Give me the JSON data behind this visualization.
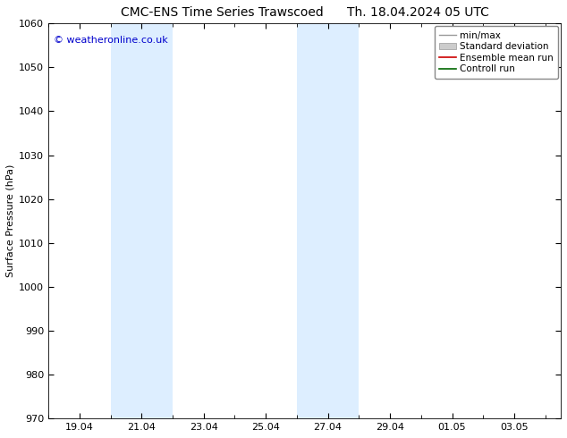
{
  "title_left": "CMC-ENS Time Series Trawscoed",
  "title_right": "Th. 18.04.2024 05 UTC",
  "ylabel": "Surface Pressure (hPa)",
  "ylim": [
    970,
    1060
  ],
  "yticks": [
    970,
    980,
    990,
    1000,
    1010,
    1020,
    1030,
    1040,
    1050,
    1060
  ],
  "xlim": [
    0,
    16.5
  ],
  "xtick_labels": [
    "19.04",
    "21.04",
    "23.04",
    "25.04",
    "27.04",
    "29.04",
    "01.05",
    "03.05"
  ],
  "xtick_positions": [
    1,
    3,
    5,
    7,
    9,
    11,
    13,
    15
  ],
  "shaded_bands": [
    {
      "x_start": 2,
      "x_end": 4,
      "color": "#ddeeff"
    },
    {
      "x_start": 8,
      "x_end": 10,
      "color": "#ddeeff"
    }
  ],
  "watermark": "© weatheronline.co.uk",
  "watermark_color": "#0000cc",
  "legend_labels": [
    "min/max",
    "Standard deviation",
    "Ensemble mean run",
    "Controll run"
  ],
  "background_color": "#ffffff",
  "plot_bg_color": "#ffffff",
  "title_fontsize": 10,
  "tick_fontsize": 8,
  "ylabel_fontsize": 8,
  "watermark_fontsize": 8,
  "legend_fontsize": 7.5
}
